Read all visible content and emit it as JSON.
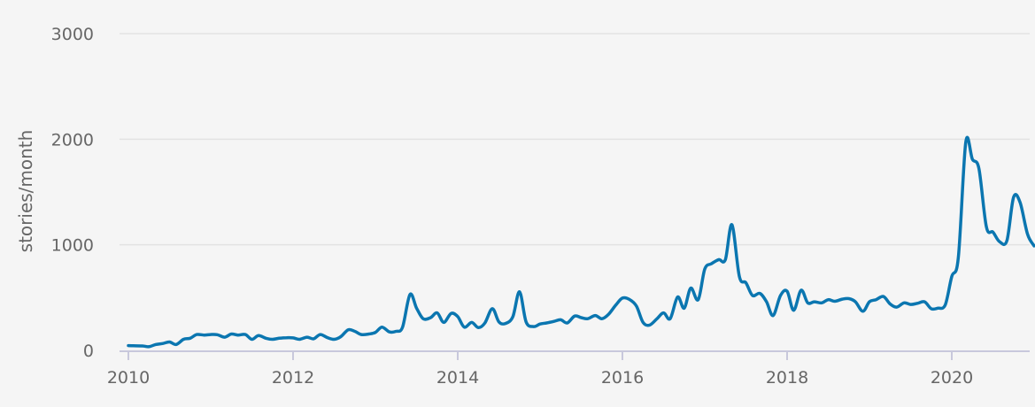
{
  "chart_data": {
    "type": "line",
    "ylabel": "stories/month",
    "xlabel": "",
    "title": "",
    "xlim": [
      2010,
      2020.9
    ],
    "ylim": [
      0,
      3000
    ],
    "grid": true,
    "legend": "none",
    "line_color": "#0b76b0",
    "x_ticks": [
      {
        "value": 2010,
        "label": "2010"
      },
      {
        "value": 2012,
        "label": "2012"
      },
      {
        "value": 2014,
        "label": "2014"
      },
      {
        "value": 2016,
        "label": "2016"
      },
      {
        "value": 2018,
        "label": "2018"
      },
      {
        "value": 2020,
        "label": "2020"
      }
    ],
    "y_ticks": [
      {
        "value": 0,
        "label": "0"
      },
      {
        "value": 1000,
        "label": "1000"
      },
      {
        "value": 2000,
        "label": "2000"
      },
      {
        "value": 3000,
        "label": "3000"
      }
    ],
    "series": [
      {
        "points": [
          [
            2010.0,
            45
          ],
          [
            2010.17,
            42
          ],
          [
            2010.25,
            35
          ],
          [
            2010.33,
            55
          ],
          [
            2010.42,
            65
          ],
          [
            2010.5,
            80
          ],
          [
            2010.58,
            55
          ],
          [
            2010.67,
            105
          ],
          [
            2010.75,
            115
          ],
          [
            2010.83,
            150
          ],
          [
            2010.92,
            145
          ],
          [
            2011.0,
            150
          ],
          [
            2011.08,
            148
          ],
          [
            2011.17,
            125
          ],
          [
            2011.25,
            155
          ],
          [
            2011.33,
            145
          ],
          [
            2011.42,
            150
          ],
          [
            2011.5,
            105
          ],
          [
            2011.58,
            140
          ],
          [
            2011.67,
            115
          ],
          [
            2011.75,
            105
          ],
          [
            2011.83,
            115
          ],
          [
            2011.92,
            120
          ],
          [
            2012.0,
            118
          ],
          [
            2012.08,
            105
          ],
          [
            2012.17,
            125
          ],
          [
            2012.25,
            110
          ],
          [
            2012.33,
            150
          ],
          [
            2012.42,
            120
          ],
          [
            2012.5,
            105
          ],
          [
            2012.58,
            130
          ],
          [
            2012.67,
            195
          ],
          [
            2012.75,
            180
          ],
          [
            2012.83,
            150
          ],
          [
            2012.92,
            155
          ],
          [
            2013.0,
            170
          ],
          [
            2013.08,
            220
          ],
          [
            2013.17,
            175
          ],
          [
            2013.25,
            180
          ],
          [
            2013.33,
            220
          ],
          [
            2013.42,
            530
          ],
          [
            2013.5,
            400
          ],
          [
            2013.58,
            300
          ],
          [
            2013.67,
            310
          ],
          [
            2013.75,
            355
          ],
          [
            2013.83,
            265
          ],
          [
            2013.92,
            350
          ],
          [
            2014.0,
            320
          ],
          [
            2014.08,
            220
          ],
          [
            2014.17,
            265
          ],
          [
            2014.25,
            215
          ],
          [
            2014.33,
            260
          ],
          [
            2014.42,
            395
          ],
          [
            2014.5,
            270
          ],
          [
            2014.58,
            255
          ],
          [
            2014.67,
            320
          ],
          [
            2014.75,
            555
          ],
          [
            2014.83,
            270
          ],
          [
            2014.92,
            225
          ],
          [
            2015.0,
            250
          ],
          [
            2015.08,
            260
          ],
          [
            2015.17,
            275
          ],
          [
            2015.25,
            290
          ],
          [
            2015.33,
            260
          ],
          [
            2015.42,
            325
          ],
          [
            2015.5,
            310
          ],
          [
            2015.58,
            300
          ],
          [
            2015.67,
            330
          ],
          [
            2015.75,
            300
          ],
          [
            2015.83,
            340
          ],
          [
            2015.92,
            430
          ],
          [
            2016.0,
            495
          ],
          [
            2016.08,
            485
          ],
          [
            2016.17,
            420
          ],
          [
            2016.25,
            265
          ],
          [
            2016.33,
            240
          ],
          [
            2016.42,
            300
          ],
          [
            2016.5,
            355
          ],
          [
            2016.58,
            300
          ],
          [
            2016.67,
            505
          ],
          [
            2016.75,
            400
          ],
          [
            2016.83,
            590
          ],
          [
            2016.92,
            480
          ],
          [
            2017.0,
            770
          ],
          [
            2017.08,
            820
          ],
          [
            2017.17,
            860
          ],
          [
            2017.25,
            860
          ],
          [
            2017.33,
            1190
          ],
          [
            2017.42,
            700
          ],
          [
            2017.5,
            640
          ],
          [
            2017.58,
            520
          ],
          [
            2017.67,
            540
          ],
          [
            2017.75,
            460
          ],
          [
            2017.83,
            330
          ],
          [
            2017.92,
            520
          ],
          [
            2018.0,
            560
          ],
          [
            2018.08,
            380
          ],
          [
            2018.17,
            570
          ],
          [
            2018.25,
            450
          ],
          [
            2018.33,
            460
          ],
          [
            2018.42,
            450
          ],
          [
            2018.5,
            480
          ],
          [
            2018.58,
            465
          ],
          [
            2018.67,
            485
          ],
          [
            2018.75,
            490
          ],
          [
            2018.83,
            460
          ],
          [
            2018.92,
            370
          ],
          [
            2019.0,
            460
          ],
          [
            2019.08,
            480
          ],
          [
            2019.17,
            510
          ],
          [
            2019.25,
            440
          ],
          [
            2019.33,
            410
          ],
          [
            2019.42,
            450
          ],
          [
            2019.5,
            435
          ],
          [
            2019.58,
            445
          ],
          [
            2019.67,
            460
          ],
          [
            2019.75,
            395
          ],
          [
            2019.83,
            400
          ],
          [
            2019.92,
            430
          ],
          [
            2020.0,
            700
          ],
          [
            2020.08,
            880
          ],
          [
            2020.17,
            1970
          ],
          [
            2020.25,
            1810
          ],
          [
            2020.33,
            1720
          ],
          [
            2020.42,
            1170
          ],
          [
            2020.5,
            1120
          ],
          [
            2020.58,
            1030
          ],
          [
            2020.67,
            1040
          ],
          [
            2020.75,
            1450
          ],
          [
            2020.83,
            1400
          ],
          [
            2020.92,
            1100
          ],
          [
            2021.0,
            990
          ]
        ]
      }
    ]
  }
}
